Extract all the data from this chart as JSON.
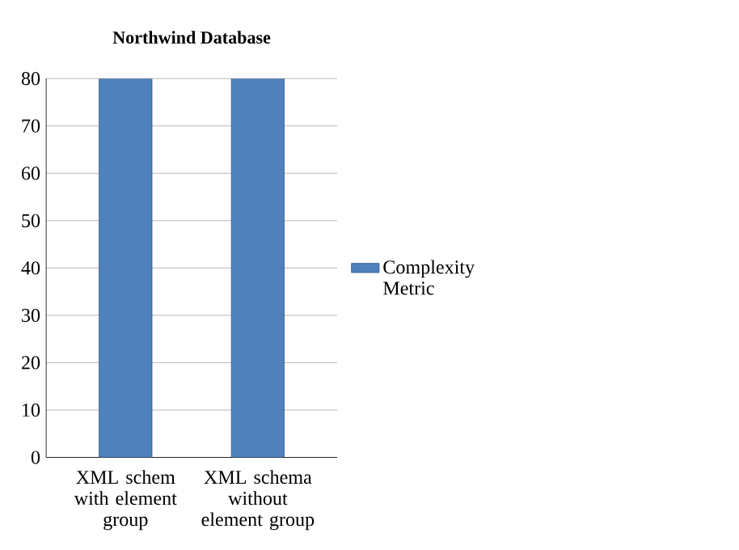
{
  "chart_data": {
    "type": "bar",
    "title": "Northwind Database",
    "categories": [
      "XML schem with element group",
      "XML schema without element group"
    ],
    "series": [
      {
        "name": "Complexity Metric",
        "color": "#4f81bd",
        "values": [
          80,
          80
        ]
      }
    ],
    "ylim": [
      0,
      80
    ],
    "yticks": [
      0,
      10,
      20,
      30,
      40,
      50,
      60,
      70,
      80
    ],
    "grid": "y",
    "legend": "right"
  }
}
